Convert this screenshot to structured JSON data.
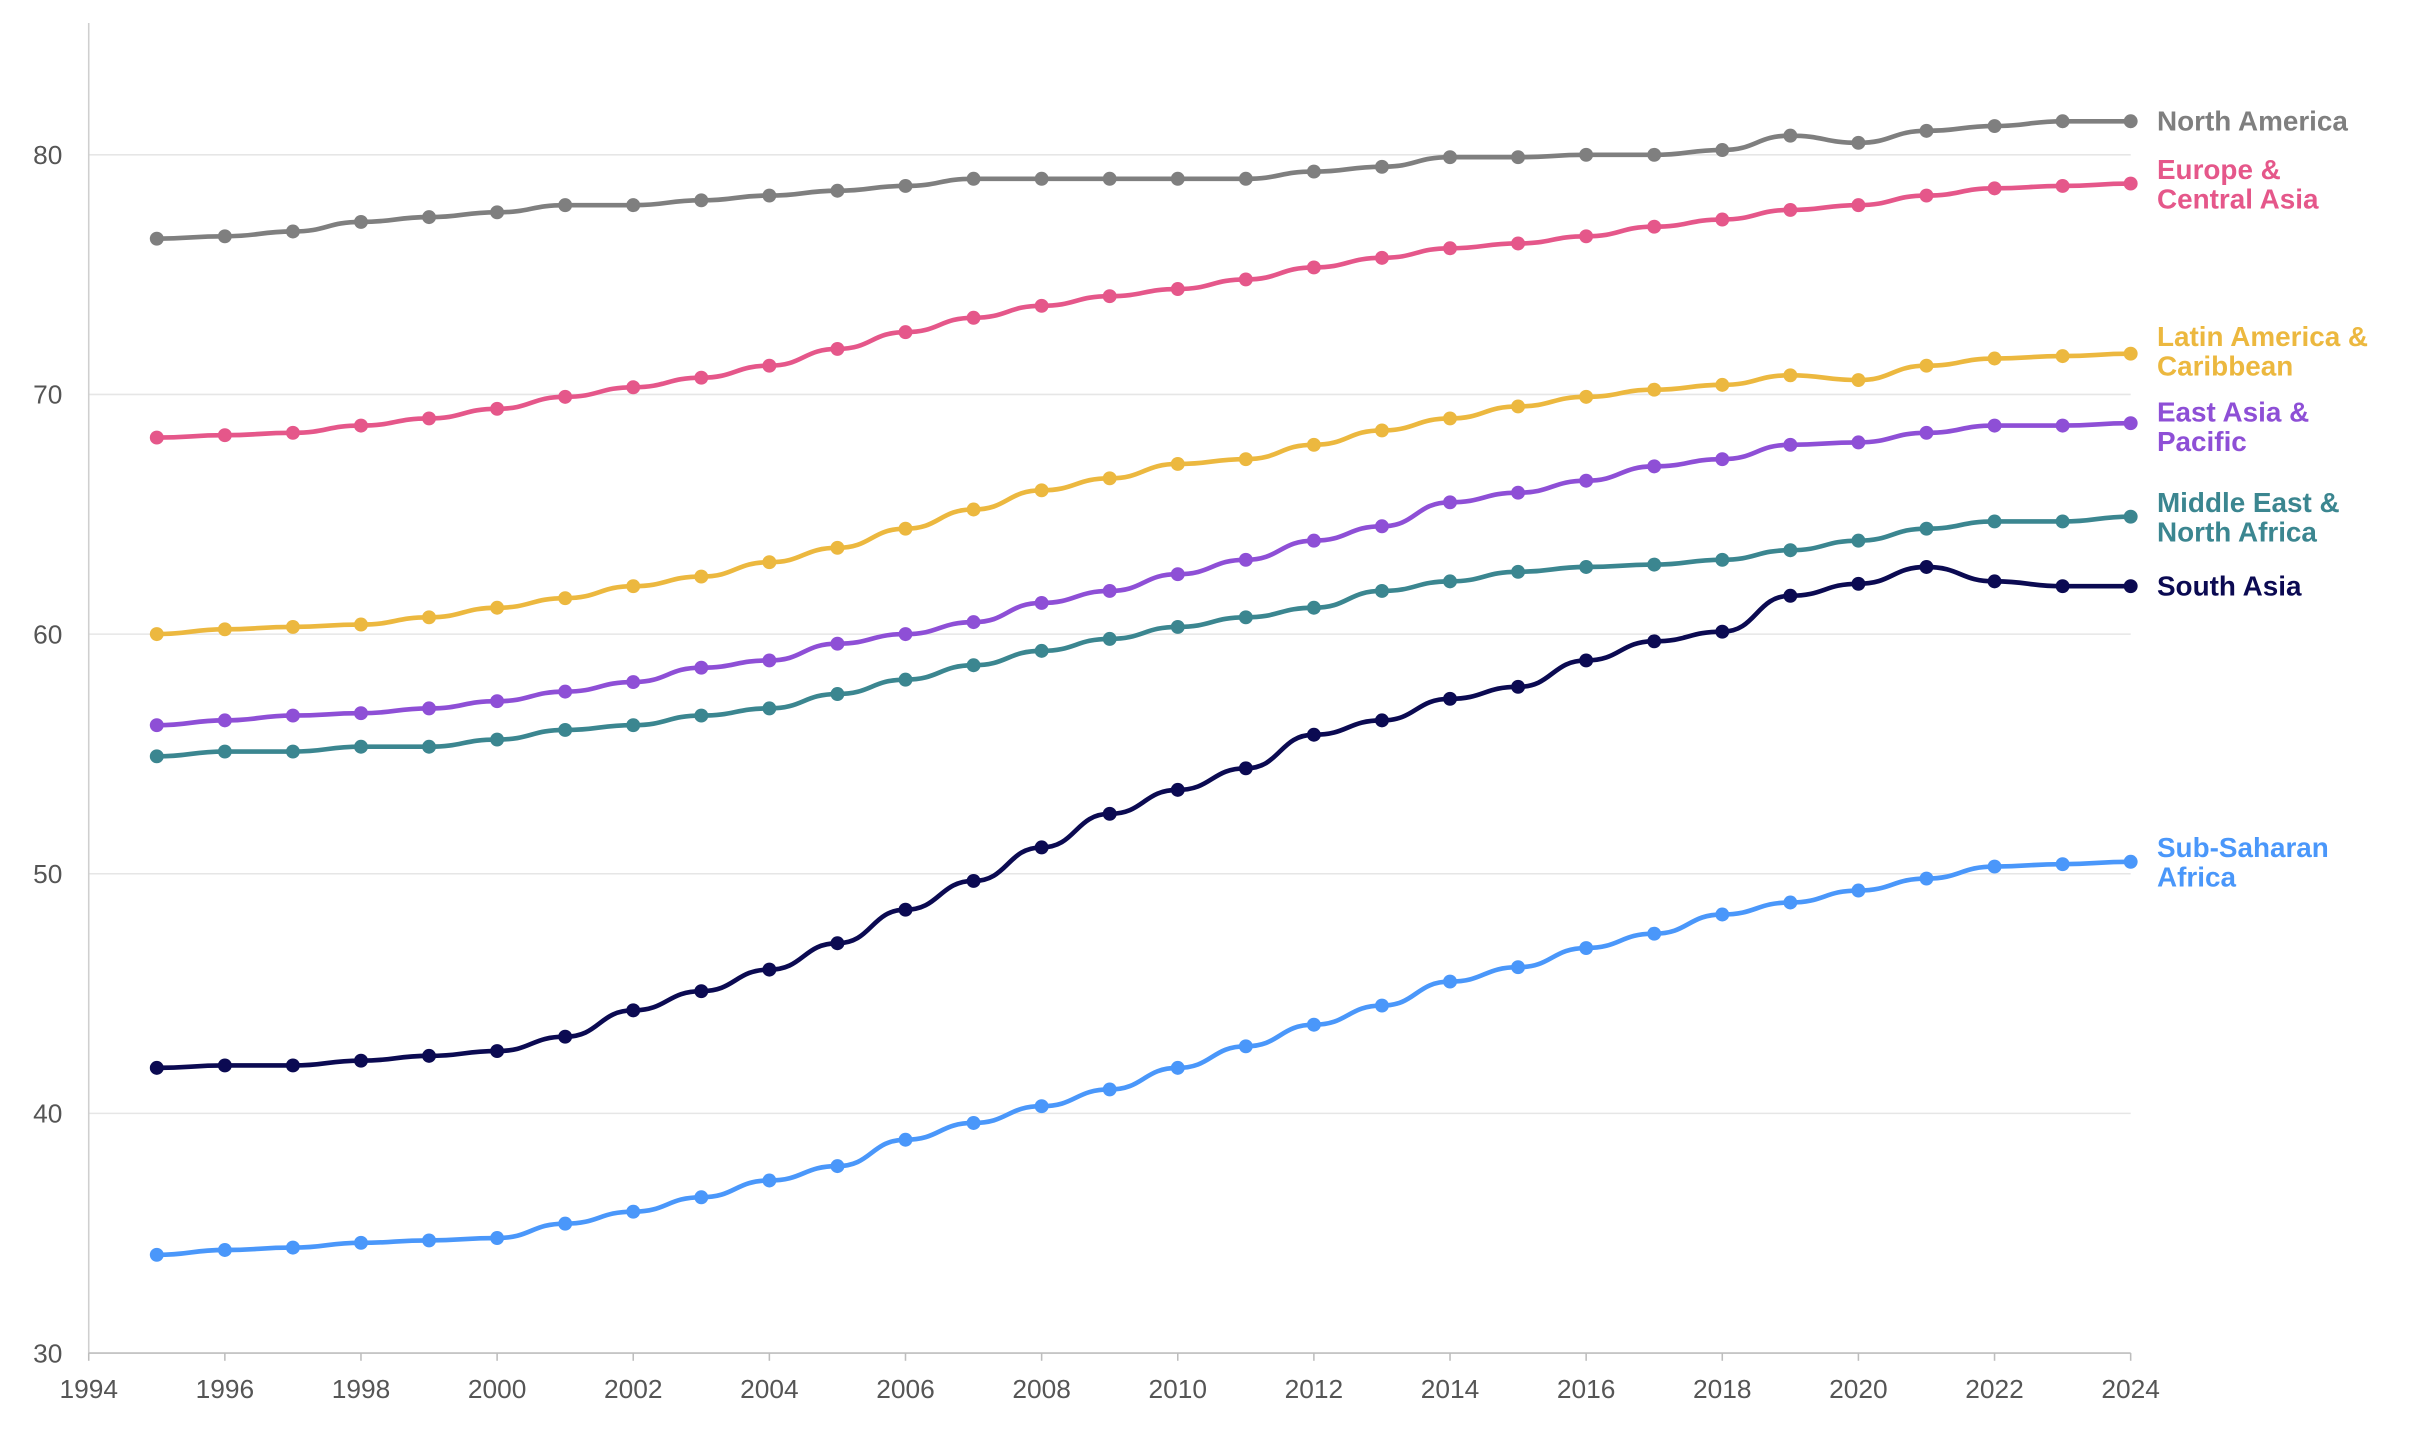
{
  "chart_data": {
    "type": "line",
    "title": "",
    "xlabel": "",
    "ylabel": "",
    "xlim": [
      1994,
      2024
    ],
    "ylim": [
      30,
      85.5
    ],
    "grid": "horizontal",
    "legend": "direct labels at right end of lines",
    "x_ticks": [
      "1994",
      "1996",
      "1998",
      "2000",
      "2002",
      "2004",
      "2006",
      "2008",
      "2010",
      "2012",
      "2014",
      "2016",
      "2018",
      "2020",
      "2022",
      "2024"
    ],
    "y_ticks": [
      "30",
      "40",
      "50",
      "60",
      "70",
      "80"
    ],
    "x": [
      1995,
      1996,
      1997,
      1998,
      1999,
      2000,
      2001,
      2002,
      2003,
      2004,
      2005,
      2006,
      2007,
      2008,
      2009,
      2010,
      2011,
      2012,
      2013,
      2014,
      2015,
      2016,
      2017,
      2018,
      2019,
      2020,
      2021,
      2022,
      2023,
      2024
    ],
    "series": [
      {
        "name": "North America",
        "label_lines": [
          "North America"
        ],
        "color": "#7f7f7f",
        "values": [
          76.5,
          76.6,
          76.8,
          77.2,
          77.4,
          77.6,
          77.9,
          77.9,
          78.1,
          78.3,
          78.5,
          78.7,
          79.0,
          79.0,
          79.0,
          79.0,
          79.0,
          79.3,
          79.5,
          79.9,
          79.9,
          80.0,
          80.0,
          80.2,
          80.8,
          80.5,
          81.0,
          81.2,
          81.4,
          81.4
        ]
      },
      {
        "name": "Europe & Central Asia",
        "label_lines": [
          "Europe &",
          "Central Asia"
        ],
        "color": "#e5578a",
        "values": [
          68.2,
          68.3,
          68.4,
          68.7,
          69.0,
          69.4,
          69.9,
          70.3,
          70.7,
          71.2,
          71.9,
          72.6,
          73.2,
          73.7,
          74.1,
          74.4,
          74.8,
          75.3,
          75.7,
          76.1,
          76.3,
          76.6,
          77.0,
          77.3,
          77.7,
          77.9,
          78.3,
          78.6,
          78.7,
          78.8
        ]
      },
      {
        "name": "Latin America & Caribbean",
        "label_lines": [
          "Latin America &",
          "Caribbean"
        ],
        "color": "#ecb83f",
        "values": [
          60.0,
          60.2,
          60.3,
          60.4,
          60.7,
          61.1,
          61.5,
          62.0,
          62.4,
          63.0,
          63.6,
          64.4,
          65.2,
          66.0,
          66.5,
          67.1,
          67.3,
          67.9,
          68.5,
          69.0,
          69.5,
          69.9,
          70.2,
          70.4,
          70.8,
          70.6,
          71.2,
          71.5,
          71.6,
          71.7
        ]
      },
      {
        "name": "East Asia & Pacific",
        "label_lines": [
          "East Asia &",
          "Pacific"
        ],
        "color": "#8e4fd6",
        "values": [
          56.2,
          56.4,
          56.6,
          56.7,
          56.9,
          57.2,
          57.6,
          58.0,
          58.6,
          58.9,
          59.6,
          60.0,
          60.5,
          61.3,
          61.8,
          62.5,
          63.1,
          63.9,
          64.5,
          65.5,
          65.9,
          66.4,
          67.0,
          67.3,
          67.9,
          68.0,
          68.4,
          68.7,
          68.7,
          68.8
        ]
      },
      {
        "name": "Middle East & North Africa",
        "label_lines": [
          "Middle East &",
          "North Africa"
        ],
        "color": "#3b8690",
        "values": [
          54.9,
          55.1,
          55.1,
          55.3,
          55.3,
          55.6,
          56.0,
          56.2,
          56.6,
          56.9,
          57.5,
          58.1,
          58.7,
          59.3,
          59.8,
          60.3,
          60.7,
          61.1,
          61.8,
          62.2,
          62.6,
          62.8,
          62.9,
          63.1,
          63.5,
          63.9,
          64.4,
          64.7,
          64.7,
          64.9
        ]
      },
      {
        "name": "South Asia",
        "label_lines": [
          "South Asia"
        ],
        "color": "#0b0a52",
        "values": [
          41.9,
          42.0,
          42.0,
          42.2,
          42.4,
          42.6,
          43.2,
          44.3,
          45.1,
          46.0,
          47.1,
          48.5,
          49.7,
          51.1,
          52.5,
          53.5,
          54.4,
          55.8,
          56.4,
          57.3,
          57.8,
          58.9,
          59.7,
          60.1,
          61.6,
          62.1,
          62.8,
          62.2,
          62.0,
          62.0
        ]
      },
      {
        "name": "Sub-Saharan Africa",
        "label_lines": [
          "Sub-Saharan",
          "Africa"
        ],
        "color": "#4a97fa",
        "values": [
          34.1,
          34.3,
          34.4,
          34.6,
          34.7,
          34.8,
          35.4,
          35.9,
          36.5,
          37.2,
          37.8,
          38.9,
          39.6,
          40.3,
          41.0,
          41.9,
          42.8,
          43.7,
          44.5,
          45.5,
          46.1,
          46.9,
          47.5,
          48.3,
          48.8,
          49.3,
          49.8,
          50.3,
          50.4,
          50.5
        ]
      }
    ]
  }
}
